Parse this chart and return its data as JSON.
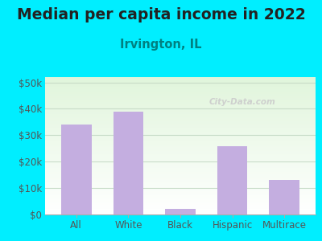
{
  "title": "Median per capita income in 2022",
  "subtitle": "Irvington, IL",
  "categories": [
    "All",
    "White",
    "Black",
    "Hispanic",
    "Multirace"
  ],
  "values": [
    34000,
    39000,
    2000,
    26000,
    13000
  ],
  "bar_color": "#c4aee0",
  "title_fontsize": 13.5,
  "subtitle_fontsize": 10.5,
  "subtitle_color": "#008080",
  "title_color": "#222222",
  "background_outer": "#00eeff",
  "ylim": [
    0,
    52000
  ],
  "yticks": [
    0,
    10000,
    20000,
    30000,
    40000,
    50000
  ],
  "ytick_labels": [
    "$0",
    "$10k",
    "$20k",
    "$30k",
    "$40k",
    "$50k"
  ],
  "watermark": "City-Data.com",
  "xlabel_color": "#555555",
  "grid_color": "#c8dcc8"
}
